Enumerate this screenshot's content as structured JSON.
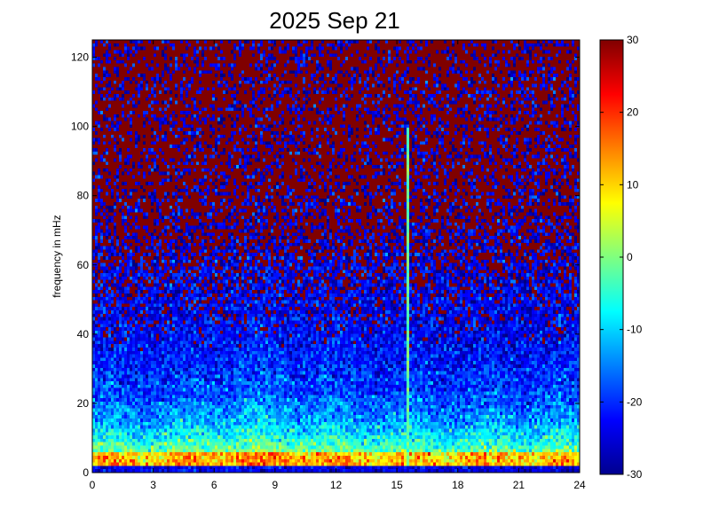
{
  "chart_data": {
    "type": "heatmap",
    "title": "2025 Sep 21",
    "xlabel": "",
    "ylabel": "frequency in mHz",
    "xlim": [
      0,
      24
    ],
    "ylim": [
      0,
      125
    ],
    "x_ticks": [
      "0",
      "3",
      "6",
      "9",
      "12",
      "15",
      "18",
      "21",
      "24"
    ],
    "y_ticks": [
      "0",
      "20",
      "40",
      "60",
      "80",
      "100",
      "120"
    ],
    "colorbar": {
      "limits": [
        -30,
        30
      ],
      "ticks": [
        "30",
        "20",
        "10",
        "0",
        "-10",
        "-20",
        "-30"
      ],
      "colormap": "jet"
    },
    "grid": false,
    "features": {
      "narrowband_line": {
        "x_hour": 15.5,
        "y_max_mhz": 100,
        "value": -2
      },
      "low_freq_band": {
        "y_max_mhz": 10,
        "value": 8
      },
      "noise_floor_high_freq": 30
    }
  }
}
